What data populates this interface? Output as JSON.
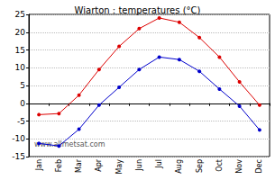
{
  "chart_data": {
    "type": "line",
    "title": "Wiarton : temperatures (°C)",
    "categories": [
      "Jan",
      "Feb",
      "Mar",
      "Apr",
      "May",
      "Jun",
      "Jul",
      "Aug",
      "Sep",
      "Oct",
      "Nov",
      "Dec"
    ],
    "series": [
      {
        "color": "#dd0000",
        "marker": "circle",
        "values": [
          -3.2,
          -2.9,
          2.3,
          9.5,
          16,
          21,
          24,
          22.8,
          18.5,
          13,
          6,
          -0.5
        ]
      },
      {
        "color": "#0000cc",
        "marker": "circle",
        "values": [
          -11.3,
          -12,
          -7.3,
          -0.5,
          4.5,
          9.5,
          13,
          12.3,
          9,
          4,
          -0.8,
          -7.5
        ]
      }
    ],
    "ylim": [
      -15,
      25
    ],
    "yticks": [
      -15,
      -10,
      -5,
      0,
      5,
      10,
      15,
      20,
      25
    ],
    "grid": true,
    "annotations": [
      "www.allmetsat.com"
    ]
  }
}
